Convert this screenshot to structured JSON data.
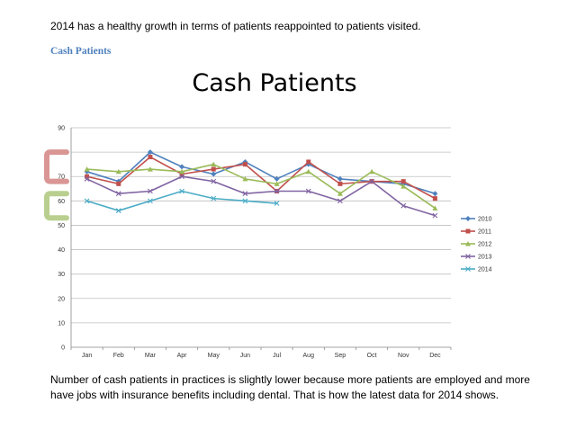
{
  "text": {
    "intro": "2014 has a healthy growth in terms of patients reappointed to patients visited.",
    "section_heading": "Cash Patients",
    "outro": "Number of cash patients in practices is slightly lower because more patients are employed and more have jobs with insurance benefits including dental.  That is how the latest data for 2014 shows."
  },
  "chart_data": {
    "type": "line",
    "title": "Cash Patients",
    "categories": [
      "Jan",
      "Feb",
      "Mar",
      "Apr",
      "May",
      "Jun",
      "Jul",
      "Aug",
      "Sep",
      "Oct",
      "Nov",
      "Dec"
    ],
    "ylim": [
      0,
      90
    ],
    "yticks": [
      0,
      10,
      20,
      30,
      40,
      50,
      60,
      70,
      80,
      90
    ],
    "grid": true,
    "legend": "right",
    "series": [
      {
        "name": "2010",
        "color": "#4f81bd",
        "marker": "diamond",
        "values": [
          72,
          68,
          80,
          74,
          71,
          76,
          69,
          75,
          69,
          68,
          67,
          63
        ]
      },
      {
        "name": "2011",
        "color": "#c0504d",
        "marker": "square",
        "values": [
          70,
          67,
          78,
          71,
          73,
          75,
          64,
          76,
          67,
          68,
          68,
          61
        ]
      },
      {
        "name": "2012",
        "color": "#9bbb59",
        "marker": "triangle",
        "values": [
          73,
          72,
          73,
          72,
          75,
          69,
          67,
          72,
          63,
          72,
          66,
          57
        ]
      },
      {
        "name": "2013",
        "color": "#8064a2",
        "marker": "x",
        "values": [
          69,
          63,
          64,
          70,
          68,
          63,
          64,
          64,
          60,
          68,
          58,
          54
        ]
      },
      {
        "name": "2014",
        "color": "#4bacc6",
        "marker": "x",
        "values": [
          60,
          56,
          60,
          64,
          61,
          60,
          59,
          null,
          null,
          null,
          null,
          null
        ]
      }
    ],
    "annotations": [
      {
        "shape": "bracket",
        "color": "#d99694",
        "yrange": [
          68,
          80
        ]
      },
      {
        "shape": "bracket",
        "color": "#b9cf8f",
        "yrange": [
          53,
          63
        ]
      }
    ]
  }
}
